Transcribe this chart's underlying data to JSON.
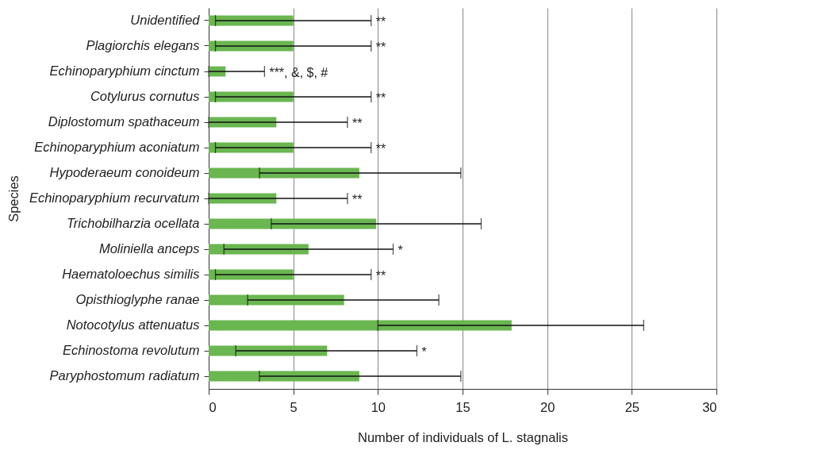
{
  "chart_data": {
    "type": "bar",
    "orientation": "horizontal",
    "xlabel": "Number of individuals of L. stagnalis",
    "ylabel": "Species",
    "categories": [
      "Unidentified",
      "Plagiorchis elegans",
      "Echinoparyphium cinctum",
      "Cotylurus cornutus",
      "Diplostomum spathaceum",
      "Echinoparyphium aconiatum",
      "Hypoderaeum conoideum",
      "Echinoparyphium recurvatum",
      "Trichobilharzia ocellata",
      "Moliniella anceps",
      "Haematoloechus similis",
      "Opisthioglyphe ranae",
      "Notocotylus attenuatus",
      "Echinostoma revolutum",
      "Paryphostomum radiatum"
    ],
    "values": [
      5.0,
      5.0,
      1.0,
      5.0,
      4.0,
      5.0,
      8.9,
      4.0,
      9.9,
      5.9,
      5.0,
      8.0,
      17.9,
      7.0,
      8.9
    ],
    "errors": [
      [
        0.4,
        9.6
      ],
      [
        0.4,
        9.6
      ],
      [
        0,
        3.3
      ],
      [
        0.4,
        9.6
      ],
      [
        0,
        8.2
      ],
      [
        0.4,
        9.6
      ],
      [
        3.0,
        14.9
      ],
      [
        0,
        8.2
      ],
      [
        3.7,
        16.1
      ],
      [
        0.9,
        10.9
      ],
      [
        0.4,
        9.6
      ],
      [
        2.3,
        13.6
      ],
      [
        10.0,
        25.7
      ],
      [
        1.6,
        12.3
      ],
      [
        3.0,
        14.9
      ]
    ],
    "color": "#6ab651",
    "xlim": [
      0,
      30
    ],
    "xticks": [
      0,
      5,
      10,
      15,
      20,
      25,
      30
    ],
    "grid": "x",
    "annotations": [
      {
        "text": "**",
        "x": 9.6,
        "y": "Unidentified"
      },
      {
        "text": "**",
        "x": 9.6,
        "y": "Plagiorchis elegans"
      },
      {
        "text": "***, &, $, #",
        "x": 3.3,
        "y": "Echinoparyphium cinctum"
      },
      {
        "text": "**",
        "x": 9.6,
        "y": "Cotylurus cornutus"
      },
      {
        "text": "**",
        "x": 8.2,
        "y": "Diplostomum spathaceum"
      },
      {
        "text": "**",
        "x": 9.6,
        "y": "Echinoparyphium aconiatum"
      },
      {
        "text": "**",
        "x": 8.2,
        "y": "Echinoparyphium recurvatum"
      },
      {
        "text": "*",
        "x": 10.9,
        "y": "Moliniella anceps"
      },
      {
        "text": "**",
        "x": 9.6,
        "y": "Haematoloechus similis"
      },
      {
        "text": "*",
        "x": 12.3,
        "y": "Echinostoma revolutum"
      }
    ]
  }
}
